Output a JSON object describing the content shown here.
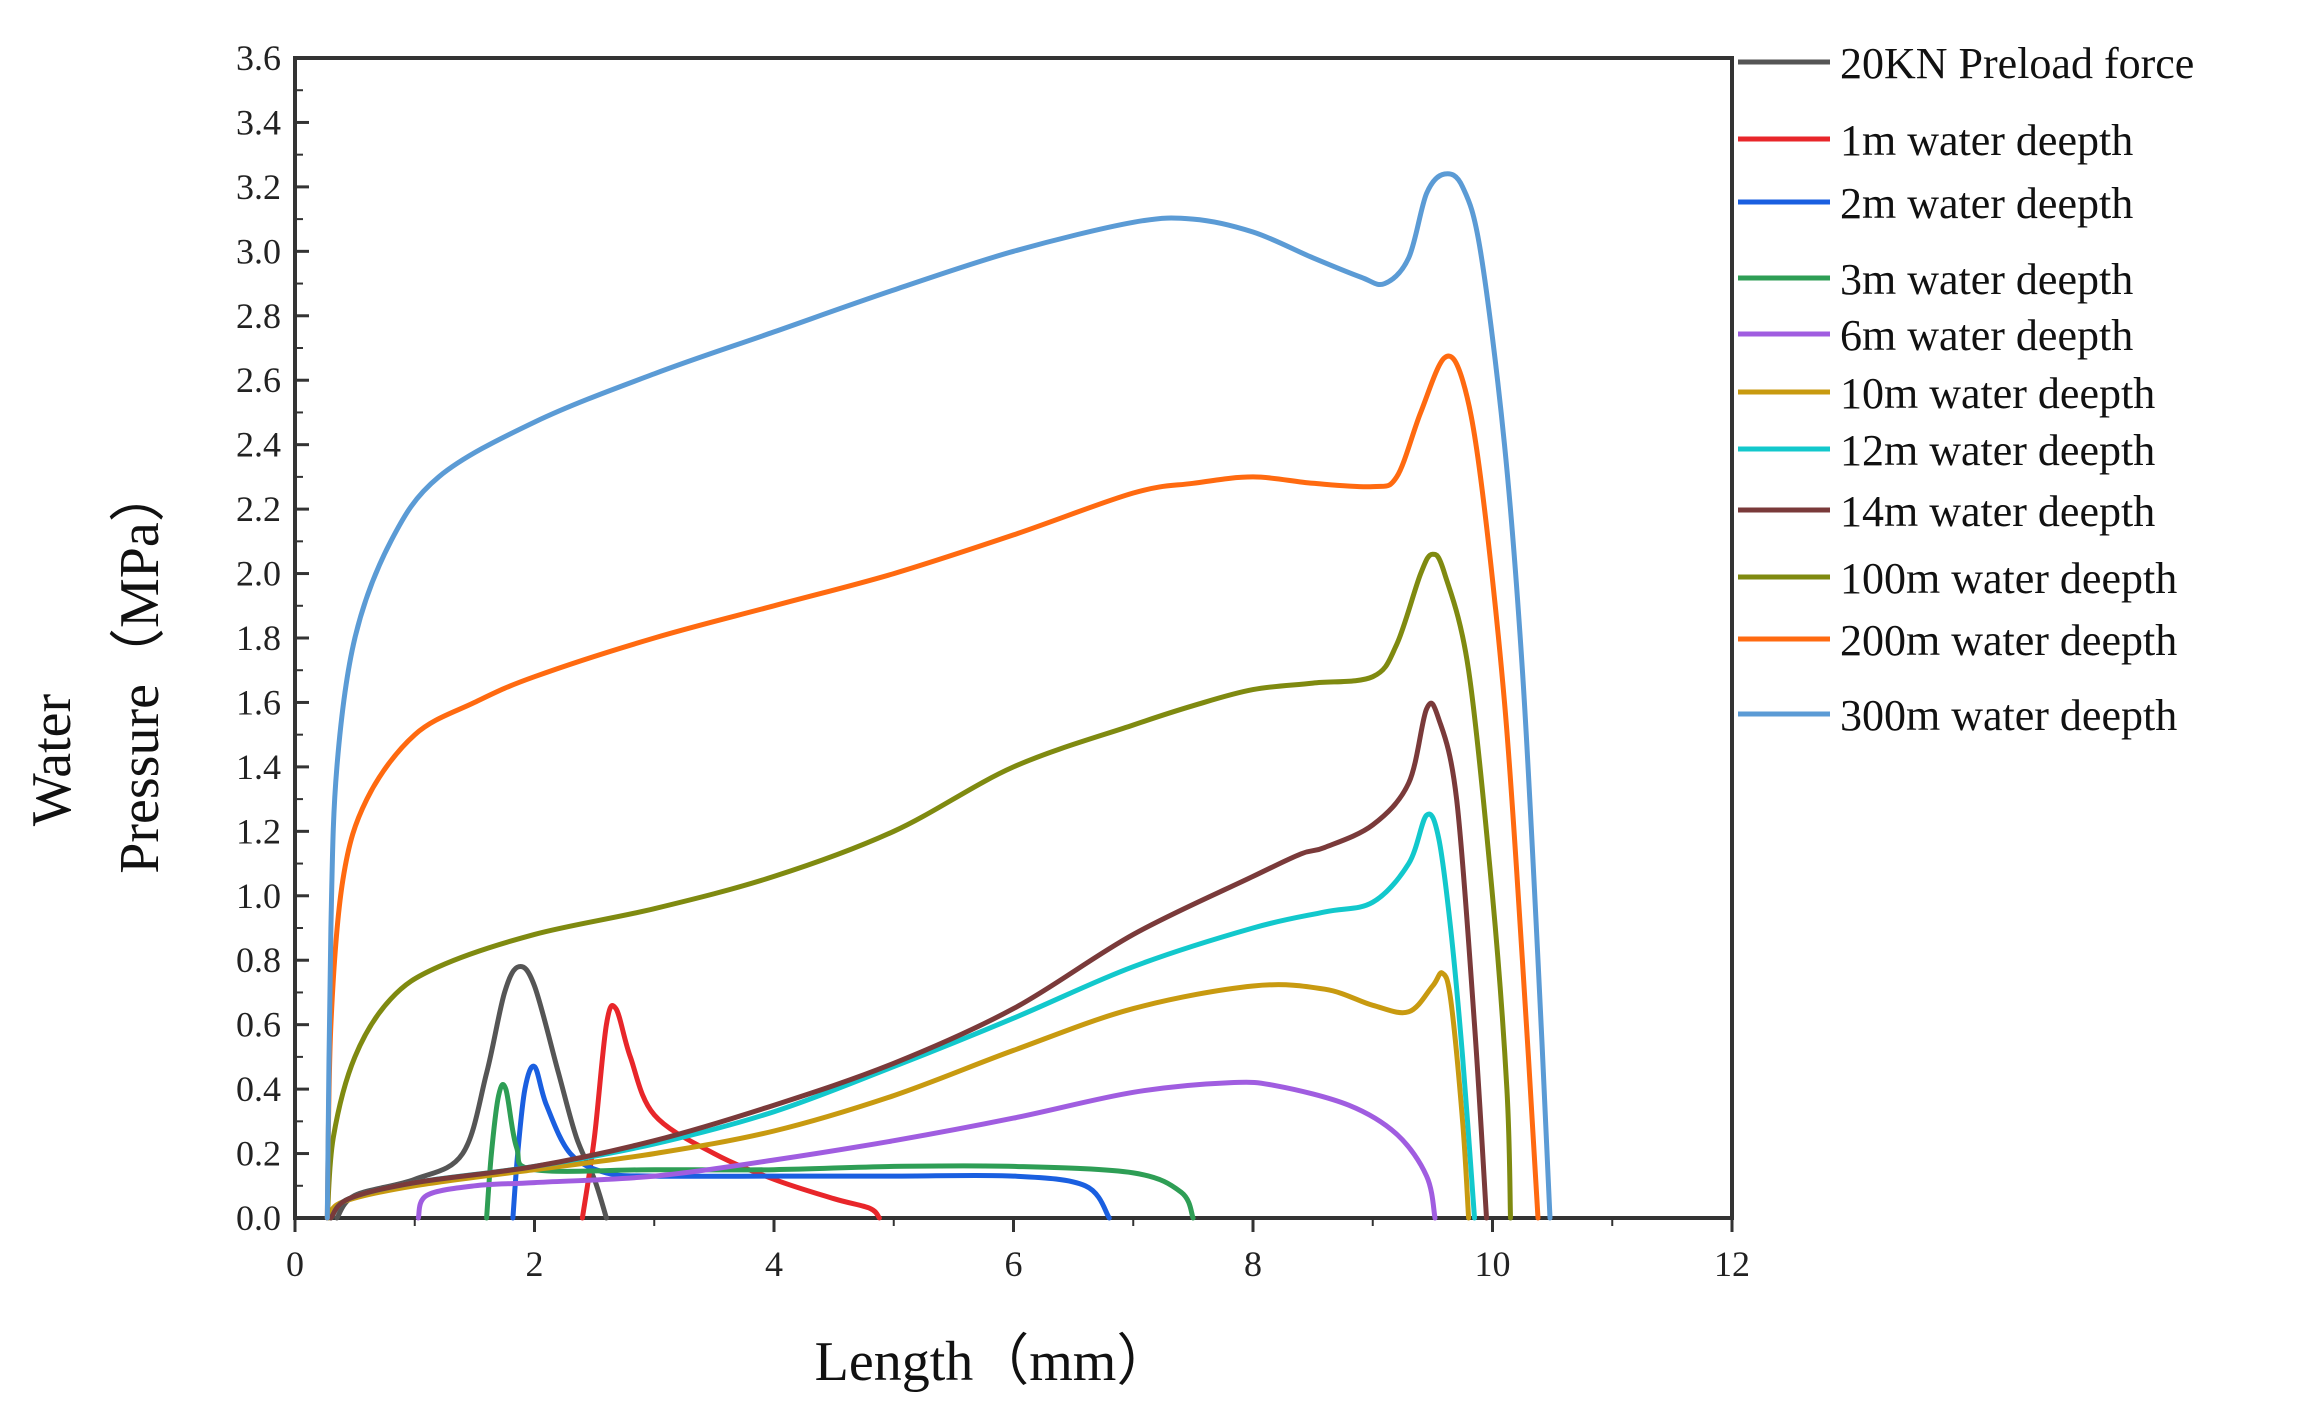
{
  "chart_data": {
    "type": "line",
    "title": "",
    "xlabel": "Length（mm）",
    "ylabel": [
      "Water",
      "Pressure（MPa）"
    ],
    "xlim": [
      0,
      12
    ],
    "ylim": [
      0,
      3.6
    ],
    "x_ticks": [
      "0",
      "2",
      "4",
      "6",
      "8",
      "10",
      "12"
    ],
    "y_ticks": [
      "0.0",
      "0.2",
      "0.4",
      "0.6",
      "0.8",
      "1.0",
      "1.2",
      "1.4",
      "1.6",
      "1.8",
      "2.0",
      "2.2",
      "2.4",
      "2.6",
      "2.8",
      "3.0",
      "3.2",
      "3.4",
      "3.6"
    ],
    "grid": false,
    "legend_position": "right",
    "series": [
      {
        "name": "20KN Preload force",
        "color": "#555555",
        "points": [
          [
            0.35,
            0
          ],
          [
            0.5,
            0.07
          ],
          [
            1.0,
            0.12
          ],
          [
            1.4,
            0.2
          ],
          [
            1.6,
            0.45
          ],
          [
            1.75,
            0.7
          ],
          [
            1.87,
            0.78
          ],
          [
            2.0,
            0.72
          ],
          [
            2.2,
            0.45
          ],
          [
            2.35,
            0.25
          ],
          [
            2.5,
            0.12
          ],
          [
            2.6,
            0
          ]
        ]
      },
      {
        "name": "1m water deepth",
        "color": "#e8262a",
        "points": [
          [
            2.4,
            0
          ],
          [
            2.5,
            0.25
          ],
          [
            2.6,
            0.6
          ],
          [
            2.68,
            0.65
          ],
          [
            2.8,
            0.5
          ],
          [
            3.0,
            0.32
          ],
          [
            3.5,
            0.2
          ],
          [
            4.0,
            0.12
          ],
          [
            4.5,
            0.06
          ],
          [
            4.8,
            0.03
          ],
          [
            4.88,
            0
          ]
        ]
      },
      {
        "name": "2m water deepth",
        "color": "#1a5fe0",
        "points": [
          [
            1.82,
            0
          ],
          [
            1.86,
            0.2
          ],
          [
            1.92,
            0.4
          ],
          [
            2.0,
            0.47
          ],
          [
            2.1,
            0.35
          ],
          [
            2.3,
            0.2
          ],
          [
            2.6,
            0.14
          ],
          [
            3.0,
            0.13
          ],
          [
            4.0,
            0.13
          ],
          [
            5.0,
            0.13
          ],
          [
            6.0,
            0.13
          ],
          [
            6.6,
            0.1
          ],
          [
            6.8,
            0
          ]
        ]
      },
      {
        "name": "3m water deepth",
        "color": "#2e9e55",
        "points": [
          [
            1.6,
            0
          ],
          [
            1.64,
            0.2
          ],
          [
            1.7,
            0.38
          ],
          [
            1.76,
            0.4
          ],
          [
            1.85,
            0.22
          ],
          [
            2.0,
            0.15
          ],
          [
            3.0,
            0.15
          ],
          [
            4.0,
            0.15
          ],
          [
            5.0,
            0.16
          ],
          [
            6.0,
            0.16
          ],
          [
            7.0,
            0.14
          ],
          [
            7.4,
            0.08
          ],
          [
            7.5,
            0
          ]
        ]
      },
      {
        "name": "6m water deepth",
        "color": "#a05de0",
        "points": [
          [
            1.03,
            0
          ],
          [
            1.1,
            0.07
          ],
          [
            1.5,
            0.1
          ],
          [
            2.0,
            0.11
          ],
          [
            3.0,
            0.13
          ],
          [
            4.0,
            0.18
          ],
          [
            5.0,
            0.24
          ],
          [
            6.0,
            0.31
          ],
          [
            7.0,
            0.39
          ],
          [
            7.8,
            0.42
          ],
          [
            8.2,
            0.41
          ],
          [
            8.8,
            0.35
          ],
          [
            9.2,
            0.26
          ],
          [
            9.45,
            0.13
          ],
          [
            9.52,
            0
          ]
        ]
      },
      {
        "name": "10m water deepth",
        "color": "#c89a10",
        "points": [
          [
            0.28,
            0
          ],
          [
            0.4,
            0.05
          ],
          [
            1.0,
            0.1
          ],
          [
            2.0,
            0.15
          ],
          [
            3.0,
            0.2
          ],
          [
            4.0,
            0.27
          ],
          [
            5.0,
            0.38
          ],
          [
            6.0,
            0.52
          ],
          [
            7.0,
            0.65
          ],
          [
            8.0,
            0.72
          ],
          [
            8.6,
            0.71
          ],
          [
            9.0,
            0.66
          ],
          [
            9.3,
            0.64
          ],
          [
            9.5,
            0.72
          ],
          [
            9.58,
            0.76
          ],
          [
            9.65,
            0.68
          ],
          [
            9.75,
            0.3
          ],
          [
            9.8,
            0
          ]
        ]
      },
      {
        "name": "12m water deepth",
        "color": "#12c8cc",
        "points": [
          [
            0.3,
            0
          ],
          [
            0.45,
            0.06
          ],
          [
            1.0,
            0.11
          ],
          [
            2.0,
            0.16
          ],
          [
            3.0,
            0.23
          ],
          [
            4.0,
            0.33
          ],
          [
            5.0,
            0.47
          ],
          [
            6.0,
            0.62
          ],
          [
            7.0,
            0.78
          ],
          [
            8.0,
            0.9
          ],
          [
            8.6,
            0.95
          ],
          [
            9.0,
            0.98
          ],
          [
            9.3,
            1.1
          ],
          [
            9.45,
            1.25
          ],
          [
            9.55,
            1.18
          ],
          [
            9.65,
            0.9
          ],
          [
            9.75,
            0.5
          ],
          [
            9.85,
            0
          ]
        ]
      },
      {
        "name": "14m water deepth",
        "color": "#7a3a3a",
        "points": [
          [
            0.3,
            0
          ],
          [
            0.45,
            0.06
          ],
          [
            1.0,
            0.11
          ],
          [
            2.0,
            0.16
          ],
          [
            3.0,
            0.24
          ],
          [
            4.0,
            0.35
          ],
          [
            5.0,
            0.48
          ],
          [
            6.0,
            0.65
          ],
          [
            7.0,
            0.88
          ],
          [
            8.0,
            1.06
          ],
          [
            8.4,
            1.13
          ],
          [
            8.6,
            1.15
          ],
          [
            9.0,
            1.22
          ],
          [
            9.3,
            1.35
          ],
          [
            9.45,
            1.58
          ],
          [
            9.55,
            1.55
          ],
          [
            9.7,
            1.3
          ],
          [
            9.85,
            0.6
          ],
          [
            9.95,
            0
          ]
        ]
      },
      {
        "name": "100m water deepth",
        "color": "#7f8a10",
        "points": [
          [
            0.27,
            0
          ],
          [
            0.32,
            0.25
          ],
          [
            0.5,
            0.5
          ],
          [
            0.8,
            0.68
          ],
          [
            1.2,
            0.78
          ],
          [
            2.0,
            0.88
          ],
          [
            3.0,
            0.96
          ],
          [
            4.0,
            1.06
          ],
          [
            5.0,
            1.2
          ],
          [
            6.0,
            1.4
          ],
          [
            7.0,
            1.53
          ],
          [
            7.5,
            1.59
          ],
          [
            8.0,
            1.64
          ],
          [
            8.5,
            1.66
          ],
          [
            9.0,
            1.68
          ],
          [
            9.2,
            1.78
          ],
          [
            9.4,
            2.0
          ],
          [
            9.5,
            2.06
          ],
          [
            9.6,
            2.0
          ],
          [
            9.8,
            1.7
          ],
          [
            10.0,
            1.0
          ],
          [
            10.12,
            0.4
          ],
          [
            10.15,
            0
          ]
        ]
      },
      {
        "name": "200m water deepth",
        "color": "#ff6a10",
        "points": [
          [
            0.27,
            0
          ],
          [
            0.3,
            0.6
          ],
          [
            0.4,
            1.05
          ],
          [
            0.6,
            1.3
          ],
          [
            1.0,
            1.5
          ],
          [
            1.5,
            1.6
          ],
          [
            2.0,
            1.68
          ],
          [
            3.0,
            1.8
          ],
          [
            4.0,
            1.9
          ],
          [
            5.0,
            2.0
          ],
          [
            6.0,
            2.12
          ],
          [
            7.0,
            2.25
          ],
          [
            7.5,
            2.28
          ],
          [
            8.0,
            2.3
          ],
          [
            8.5,
            2.28
          ],
          [
            9.0,
            2.27
          ],
          [
            9.2,
            2.3
          ],
          [
            9.4,
            2.5
          ],
          [
            9.6,
            2.67
          ],
          [
            9.75,
            2.6
          ],
          [
            9.9,
            2.3
          ],
          [
            10.1,
            1.6
          ],
          [
            10.25,
            0.8
          ],
          [
            10.38,
            0
          ]
        ]
      },
      {
        "name": "300m water deepth",
        "color": "#5b9bd5",
        "points": [
          [
            0.27,
            0
          ],
          [
            0.3,
            0.9
          ],
          [
            0.35,
            1.4
          ],
          [
            0.5,
            1.8
          ],
          [
            0.8,
            2.1
          ],
          [
            1.2,
            2.3
          ],
          [
            2.0,
            2.47
          ],
          [
            3.0,
            2.62
          ],
          [
            4.0,
            2.75
          ],
          [
            5.0,
            2.88
          ],
          [
            6.0,
            3.0
          ],
          [
            7.0,
            3.09
          ],
          [
            7.5,
            3.1
          ],
          [
            8.0,
            3.06
          ],
          [
            8.5,
            2.98
          ],
          [
            8.9,
            2.92
          ],
          [
            9.1,
            2.9
          ],
          [
            9.3,
            2.98
          ],
          [
            9.45,
            3.18
          ],
          [
            9.6,
            3.24
          ],
          [
            9.75,
            3.2
          ],
          [
            9.9,
            3.0
          ],
          [
            10.1,
            2.4
          ],
          [
            10.25,
            1.7
          ],
          [
            10.38,
            0.8
          ],
          [
            10.48,
            0
          ]
        ]
      }
    ]
  }
}
